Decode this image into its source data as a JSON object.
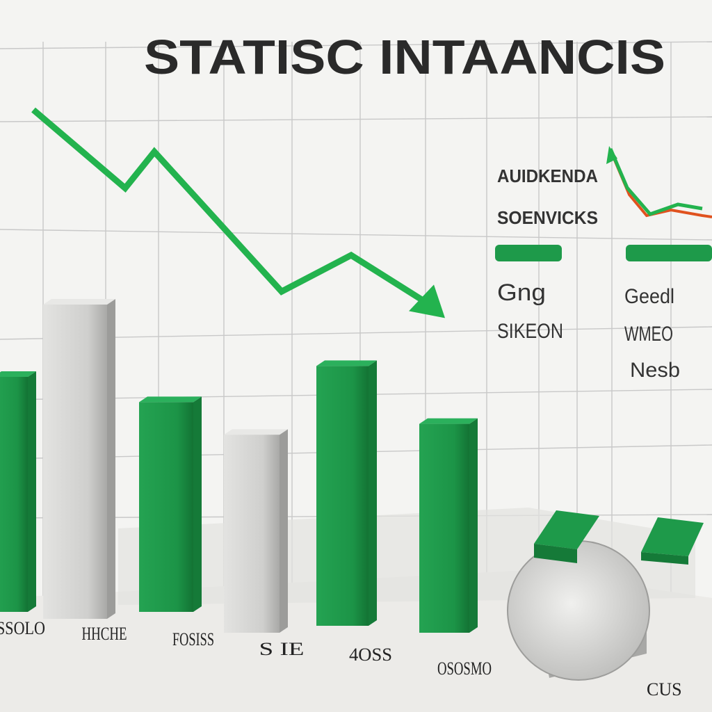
{
  "chart_data": {
    "type": "bar",
    "title": "STATISC INTAANCIS",
    "categories": [
      "SSOLO",
      "HHCHE",
      "FOSISS",
      "S IE",
      "4OSS",
      "OSOSMO"
    ],
    "series": [
      {
        "name": "",
        "color": "#1e9a4a",
        "values": [
          65,
          0,
          58,
          0,
          68,
          52
        ]
      },
      {
        "name": "",
        "color": "#c9c9c7",
        "values": [
          0,
          85,
          0,
          49,
          0,
          0
        ]
      }
    ],
    "bars": [
      {
        "category": "SSOLO",
        "series": 0,
        "value": 65
      },
      {
        "category": "HHCHE",
        "series": 1,
        "value": 85
      },
      {
        "category": "FOSISS",
        "series": 0,
        "value": 58
      },
      {
        "category": "S IE",
        "series": 1,
        "value": 49
      },
      {
        "category": "4OSS",
        "series": 0,
        "value": 68
      },
      {
        "category": "OSOSMO",
        "series": 0,
        "value": 52
      }
    ],
    "trend_line": {
      "color": "#23b34e",
      "values": [
        100,
        72,
        85,
        35,
        48,
        30
      ]
    },
    "ylim": [
      0,
      100
    ],
    "grid": true,
    "legend": {
      "placement": "top-right",
      "labels": [
        "AUIDKENDA",
        "SOENVICKS",
        "Gng",
        "SIKEON",
        "Geedl",
        "WMEO",
        "Nesb"
      ]
    },
    "extra_tick_label": "CUS"
  },
  "colors": {
    "green": "#1e9a4a",
    "green_dark": "#157a38",
    "gray": "#cfcfcd",
    "gray_dark": "#9c9c9a",
    "trend": "#23b34e",
    "orange": "#e0521f",
    "grid": "#c8c8c8"
  }
}
